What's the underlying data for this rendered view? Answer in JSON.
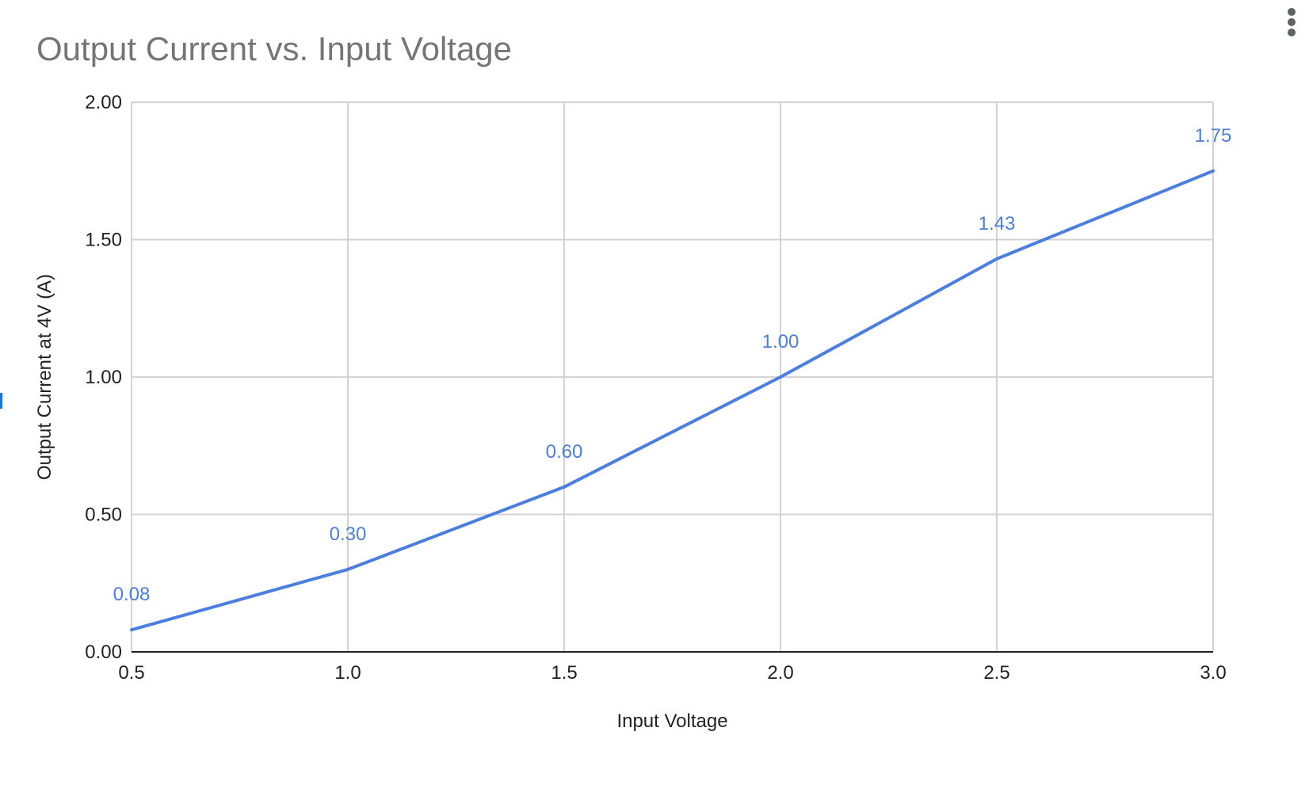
{
  "chart_data": {
    "type": "line",
    "title": "Output Current vs. Input Voltage",
    "xlabel": "Input Voltage",
    "ylabel": "Output Current at 4V (A)",
    "x": [
      0.5,
      1.0,
      1.5,
      2.0,
      2.5,
      3.0
    ],
    "x_tick_labels": [
      "0.5",
      "1.0",
      "1.5",
      "2.0",
      "2.5",
      "3.0"
    ],
    "y_tick_values": [
      0,
      0.5,
      1.0,
      1.5,
      2.0
    ],
    "y_tick_labels": [
      "0.00",
      "0.50",
      "1.00",
      "1.50",
      "2.00"
    ],
    "xlim": [
      0.5,
      3.0
    ],
    "ylim": [
      0,
      2.0
    ],
    "grid": true,
    "series": [
      {
        "values": [
          0.08,
          0.3,
          0.6,
          1.0,
          1.43,
          1.75
        ],
        "data_labels": [
          "0.08",
          "0.30",
          "0.60",
          "1.00",
          "1.43",
          "1.75"
        ],
        "color": "#4a7ee0"
      }
    ]
  },
  "colors": {
    "series": "#4a7ee0",
    "grid": "#d3d3d3",
    "axis": "#222222",
    "title": "#757575"
  },
  "icons": {
    "menu": "more-vert-icon"
  }
}
